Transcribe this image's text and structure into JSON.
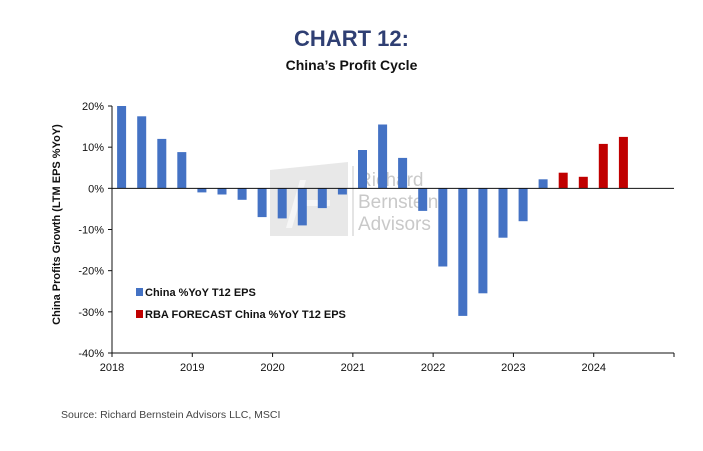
{
  "header": {
    "title": "CHART 12:",
    "subtitle": "China’s Profit Cycle"
  },
  "source": "Source: Richard Bernstein Advisors LLC, MSCI",
  "watermark": {
    "lines": [
      "Richard",
      "Bernstein",
      "Advisors"
    ]
  },
  "colors": {
    "actual": "#4472c4",
    "forecast": "#c00000"
  },
  "chart_data": {
    "type": "bar",
    "title": "China’s Profit Cycle",
    "xlabel": "",
    "ylabel": "China Profits Growth  (LTM EPS %YoY)",
    "ylim": [
      -40,
      20
    ],
    "yticks": [
      -40,
      -30,
      -20,
      -10,
      0,
      10,
      20
    ],
    "ytick_labels": [
      "-40%",
      "-30%",
      "-20%",
      "-10%",
      "0%",
      "10%",
      "20%"
    ],
    "xlim": [
      2018,
      2025
    ],
    "xticks": [
      2018,
      2019,
      2020,
      2021,
      2022,
      2023,
      2024
    ],
    "xtick_labels": [
      "2018",
      "2019",
      "2020",
      "2021",
      "2022",
      "2023",
      "2024"
    ],
    "grid": false,
    "legend_position": "bottom-left",
    "series": [
      {
        "name": "China %YoY T12 EPS",
        "color": "#4472c4",
        "x": [
          2018.12,
          2018.37,
          2018.62,
          2018.87,
          2019.12,
          2019.37,
          2019.62,
          2019.87,
          2020.12,
          2020.37,
          2020.62,
          2020.87,
          2021.12,
          2021.37,
          2021.62,
          2021.87,
          2022.12,
          2022.37,
          2022.62,
          2022.87,
          2023.12,
          2023.37
        ],
        "values": [
          20,
          17.5,
          12,
          8.8,
          -1,
          -1.5,
          -2.8,
          -7,
          -7.3,
          -9,
          -4.8,
          -1.5,
          9.3,
          15.5,
          7.4,
          -5.5,
          -19,
          -31,
          -25.5,
          -12,
          -8,
          2.2
        ]
      },
      {
        "name": "RBA FORECAST China %YoY T12 EPS",
        "color": "#c00000",
        "x": [
          2023.62,
          2023.87,
          2024.12,
          2024.37
        ],
        "values": [
          3.8,
          2.8,
          10.8,
          12.5
        ]
      }
    ]
  }
}
